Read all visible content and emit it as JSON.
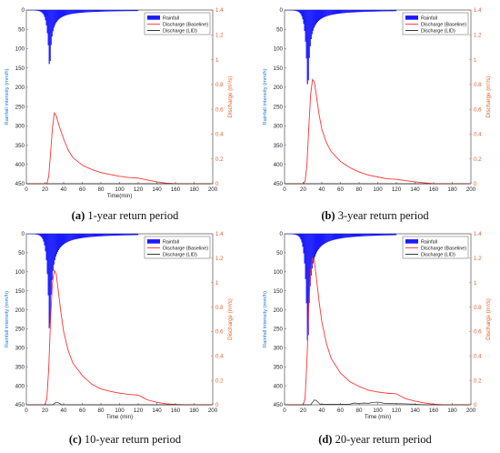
{
  "captions": [
    {
      "letter": "(a)",
      "text": " 1-year return period"
    },
    {
      "letter": "(b)",
      "text": " 3-year return period"
    },
    {
      "letter": "(c)",
      "text": " 10-year return period"
    },
    {
      "letter": "(d)",
      "text": " 20-year return period"
    }
  ],
  "colors": {
    "rainfall": "#1a1aff",
    "baseline": "#ff3333",
    "lid": "#222222",
    "left_axis": "#1f77d4",
    "right_axis": "#e8602c"
  },
  "chart_data": [
    {
      "type": "line",
      "xlabel": "Time(min)",
      "ylabel_left": "Rainfall intensity (mm/h)",
      "ylabel_right": "Discharge (m³/s)",
      "xlim": [
        0,
        200
      ],
      "xticks": [
        0,
        20,
        40,
        60,
        80,
        100,
        120,
        140,
        160,
        180,
        200
      ],
      "ylim_left": [
        0,
        450
      ],
      "yticks_left": [
        0,
        50,
        100,
        150,
        200,
        250,
        300,
        350,
        400,
        450
      ],
      "ylim_right": [
        0,
        1.4
      ],
      "yticks_right": [
        0,
        0.2,
        0.4,
        0.6,
        0.8,
        1,
        1.2,
        1.4
      ],
      "legend": [
        "Rainfall",
        "Discharge (Baseline)",
        "Discharge (LID)"
      ],
      "rainfall": {
        "peak_time": 25,
        "peak": 170,
        "end_time": 120
      },
      "series": [
        {
          "name": "Discharge (Baseline)",
          "x": [
            0,
            22,
            24,
            26,
            28,
            30,
            32,
            35,
            40,
            45,
            50,
            60,
            70,
            80,
            90,
            100,
            110,
            120,
            130,
            140,
            150,
            160,
            170,
            200
          ],
          "y": [
            0,
            0,
            0.06,
            0.25,
            0.45,
            0.57,
            0.55,
            0.47,
            0.36,
            0.27,
            0.21,
            0.15,
            0.115,
            0.09,
            0.075,
            0.06,
            0.05,
            0.045,
            0.03,
            0.015,
            0.005,
            0,
            0,
            0
          ]
        },
        {
          "name": "Discharge (LID)",
          "x": [
            0,
            200
          ],
          "y": [
            0,
            0
          ]
        }
      ]
    },
    {
      "type": "line",
      "xlabel": "",
      "ylabel_left": "Rainfall intensity (mm/h)",
      "ylabel_right": "Discharge (m³/s)",
      "xlim": [
        0,
        200
      ],
      "xticks": [
        0,
        20,
        40,
        60,
        80,
        100,
        120,
        140,
        160,
        180,
        200
      ],
      "ylim_left": [
        0,
        450
      ],
      "yticks_left": [
        0,
        50,
        100,
        150,
        200,
        250,
        300,
        350,
        400,
        450
      ],
      "ylim_right": [
        0,
        1.4
      ],
      "yticks_right": [
        0,
        0.2,
        0.4,
        0.6,
        0.8,
        1,
        1.2,
        1.4
      ],
      "legend": [
        "Rainfall",
        "Discharge (Baseline)",
        "Discharge (LID)"
      ],
      "rainfall": {
        "peak_time": 25,
        "peak": 235,
        "end_time": 120
      },
      "series": [
        {
          "name": "Discharge (Baseline)",
          "x": [
            0,
            20,
            22,
            24,
            26,
            28,
            30,
            32,
            34,
            37,
            40,
            45,
            50,
            60,
            70,
            80,
            90,
            100,
            110,
            120,
            130,
            140,
            150,
            160,
            170,
            200
          ],
          "y": [
            0,
            0,
            0.02,
            0.15,
            0.45,
            0.72,
            0.84,
            0.82,
            0.72,
            0.56,
            0.44,
            0.33,
            0.26,
            0.18,
            0.13,
            0.095,
            0.07,
            0.055,
            0.04,
            0.035,
            0.025,
            0.015,
            0.008,
            0,
            0,
            0
          ]
        },
        {
          "name": "Discharge (LID)",
          "x": [
            0,
            200
          ],
          "y": [
            0,
            0
          ]
        }
      ]
    },
    {
      "type": "line",
      "xlabel": "Time (min)",
      "ylabel_left": "Rainfall intensity (mm/h)",
      "ylabel_right": "Discharge (m³/s)",
      "xlim": [
        0,
        200
      ],
      "xticks": [
        0,
        20,
        40,
        60,
        80,
        100,
        120,
        140,
        160,
        180,
        200
      ],
      "ylim_left": [
        0,
        450
      ],
      "yticks_left": [
        0,
        50,
        100,
        150,
        200,
        250,
        300,
        350,
        400,
        450
      ],
      "ylim_right": [
        0,
        1.4
      ],
      "yticks_right": [
        0,
        0.2,
        0.4,
        0.6,
        0.8,
        1,
        1.2,
        1.4
      ],
      "legend": [
        "Rainfall",
        "Discharge (Baseline)",
        "Discharge (LID)"
      ],
      "rainfall": {
        "peak_time": 25,
        "peak": 305,
        "end_time": 120
      },
      "series": [
        {
          "name": "Discharge (Baseline)",
          "x": [
            0,
            20,
            22,
            24,
            26,
            28,
            30,
            32,
            34,
            37,
            40,
            45,
            50,
            60,
            70,
            80,
            90,
            100,
            110,
            120,
            125,
            130,
            140,
            150,
            160,
            170,
            200
          ],
          "y": [
            0,
            0,
            0.05,
            0.3,
            0.7,
            1.0,
            1.1,
            1.07,
            0.95,
            0.76,
            0.6,
            0.44,
            0.34,
            0.24,
            0.17,
            0.13,
            0.11,
            0.095,
            0.085,
            0.08,
            0.06,
            0.04,
            0.02,
            0.008,
            0.003,
            0,
            0
          ]
        },
        {
          "name": "Discharge (LID)",
          "x": [
            0,
            28,
            30,
            32,
            34,
            36,
            38,
            200
          ],
          "y": [
            0,
            0,
            0.01,
            0.02,
            0.018,
            0.01,
            0,
            0
          ]
        }
      ]
    },
    {
      "type": "line",
      "xlabel": "Time (min)",
      "ylabel_left": "Rainfall intensity (mm/h)",
      "ylabel_right": "Discharge (m³/s)",
      "xlim": [
        0,
        200
      ],
      "xticks": [
        0,
        20,
        40,
        60,
        80,
        100,
        120,
        140,
        160,
        180,
        200
      ],
      "ylim_left": [
        0,
        450
      ],
      "yticks_left": [
        0,
        50,
        100,
        150,
        200,
        250,
        300,
        350,
        400,
        450
      ],
      "ylim_right": [
        0,
        1.4
      ],
      "yticks_right": [
        0,
        0.2,
        0.4,
        0.6,
        0.8,
        1,
        1.2,
        1.4
      ],
      "legend": [
        "Rainfall",
        "Discharge (Baseline)",
        "Discharge (LID)"
      ],
      "rainfall": {
        "peak_time": 25,
        "peak": 345,
        "end_time": 120
      },
      "series": [
        {
          "name": "Discharge (Baseline)",
          "x": [
            0,
            20,
            22,
            24,
            26,
            28,
            30,
            32,
            34,
            37,
            40,
            45,
            50,
            60,
            70,
            80,
            90,
            100,
            110,
            120,
            125,
            130,
            140,
            150,
            160,
            170,
            200
          ],
          "y": [
            0,
            0,
            0.05,
            0.35,
            0.8,
            1.1,
            1.2,
            1.18,
            1.05,
            0.85,
            0.68,
            0.5,
            0.38,
            0.26,
            0.19,
            0.15,
            0.12,
            0.105,
            0.095,
            0.09,
            0.07,
            0.05,
            0.03,
            0.015,
            0.005,
            0,
            0
          ]
        },
        {
          "name": "Discharge (LID)",
          "x": [
            0,
            28,
            30,
            32,
            34,
            36,
            38,
            70,
            75,
            80,
            85,
            90,
            95,
            100,
            105,
            110,
            130,
            140,
            150,
            200
          ],
          "y": [
            0,
            0,
            0.02,
            0.04,
            0.035,
            0.02,
            0.005,
            0.005,
            0.015,
            0.01,
            0.015,
            0.012,
            0.02,
            0.022,
            0.015,
            0.01,
            0.008,
            0.005,
            0,
            0
          ]
        }
      ]
    }
  ]
}
